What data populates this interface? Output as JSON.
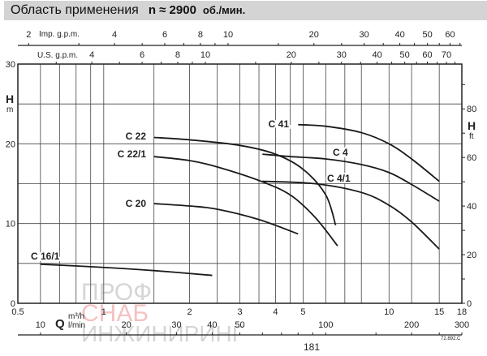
{
  "header": {
    "title": "Область применения",
    "speed": "n ≈ 2900",
    "speed_unit": "об./мин."
  },
  "chart_data": {
    "type": "line",
    "x_scale": "log",
    "xlim": [
      0.5,
      18
    ],
    "ylim": [
      0,
      30
    ],
    "grid": true,
    "x_axis": {
      "label": "Q",
      "unit": "m³/h",
      "ticks": [
        0.5,
        1,
        2,
        3,
        4,
        5,
        10,
        15,
        18
      ],
      "gridlines": [
        0.6,
        0.7,
        0.8,
        0.9,
        1,
        1.5,
        2,
        2.5,
        3,
        3.5,
        4,
        4.5,
        5,
        6,
        7,
        8,
        10,
        12,
        15
      ]
    },
    "x_axis_lmin": {
      "unit": "l/min",
      "ticks": [
        10,
        20,
        30,
        40,
        50,
        100,
        200,
        300
      ]
    },
    "x_axis_imp": {
      "label": "Imp. g.p.m.",
      "ticks": [
        2,
        4,
        6,
        8,
        10,
        20,
        30,
        40,
        50,
        60
      ]
    },
    "x_axis_us": {
      "label": "U.S. g.p.m.",
      "ticks": [
        4,
        6,
        8,
        10,
        20,
        30,
        40,
        50,
        60,
        70
      ]
    },
    "y_axis": {
      "label": "H",
      "unit": "m",
      "ticks": [
        0,
        10,
        20,
        30
      ],
      "gridlines": [
        5,
        10,
        15,
        20,
        25
      ]
    },
    "y_axis_right": {
      "label": "H",
      "unit": "ft",
      "ticks": [
        0,
        20,
        40,
        60,
        80
      ]
    },
    "series": [
      {
        "name": "C 16/1",
        "x": [
          0.6,
          1.0,
          1.5,
          2.4
        ],
        "y": [
          4.9,
          4.5,
          4.1,
          3.5
        ]
      },
      {
        "name": "C 20",
        "x": [
          1.5,
          2.0,
          2.5,
          3.5,
          4.8
        ],
        "y": [
          12.5,
          12.2,
          11.8,
          10.5,
          8.7
        ]
      },
      {
        "name": "C 22",
        "x": [
          1.5,
          2.0,
          3.0,
          4.0,
          5.0,
          6.0,
          6.5
        ],
        "y": [
          20.8,
          20.5,
          19.8,
          18.7,
          16.8,
          13.6,
          9.8
        ]
      },
      {
        "name": "C 22/1",
        "x": [
          1.5,
          2.0,
          2.5,
          3.5,
          4.5,
          5.5,
          6.6
        ],
        "y": [
          18.4,
          17.9,
          17.1,
          15.4,
          13.6,
          10.8,
          7.2
        ]
      },
      {
        "name": "C 41",
        "x": [
          4.8,
          6.0,
          8.0,
          10.0,
          12.0,
          15.0
        ],
        "y": [
          22.4,
          22.2,
          21.4,
          20.0,
          18.1,
          15.3
        ]
      },
      {
        "name": "C 4",
        "x": [
          3.6,
          4.5,
          6.0,
          8.0,
          10.0,
          12.0,
          15.0
        ],
        "y": [
          18.7,
          18.4,
          18.1,
          17.4,
          16.4,
          14.9,
          12.8
        ]
      },
      {
        "name": "C 4/1",
        "x": [
          3.6,
          5.5,
          8.0,
          10.0,
          12.0,
          15.0
        ],
        "y": [
          15.3,
          15.0,
          13.9,
          12.3,
          10.2,
          6.8
        ]
      }
    ]
  },
  "footer": {
    "code": "72.892.C",
    "page": "181"
  },
  "watermark": {
    "line1": "ПРОФ",
    "line2": "СНАБ",
    "line3": "ИНЖИНИРИНГ"
  }
}
